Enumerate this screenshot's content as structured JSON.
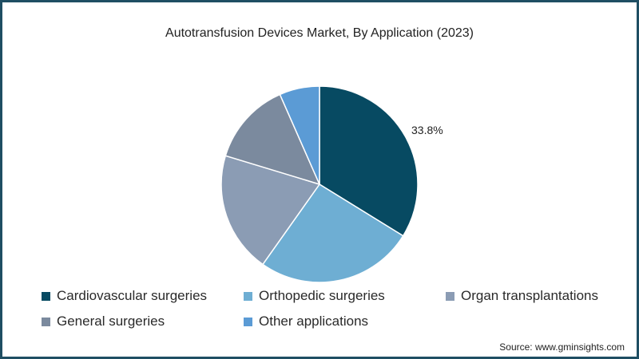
{
  "chart_data": {
    "type": "pie",
    "title": "Autotransfusion Devices Market, By Application (2023)",
    "categories": [
      "Cardiovascular surgeries",
      "Orthopedic surgeries",
      "Organ transplantations",
      "General surgeries",
      "Other applications"
    ],
    "values": [
      33.8,
      26.0,
      19.9,
      13.7,
      6.6
    ],
    "colors": [
      "#074a62",
      "#6eaed3",
      "#8b9cb4",
      "#7b8a9e",
      "#5b9bd5"
    ],
    "data_labels": [
      "33.8%",
      "",
      "",
      "",
      ""
    ],
    "legend_position": "bottom",
    "source": "Source: www.gminsights.com"
  },
  "title": "Autotransfusion Devices Market, By Application (2023)",
  "label_cardio": "33.8%",
  "legend": [
    {
      "label": "Cardiovascular surgeries",
      "color": "#074a62"
    },
    {
      "label": "Orthopedic surgeries",
      "color": "#6eaed3"
    },
    {
      "label": "Organ transplantations",
      "color": "#8b9cb4"
    },
    {
      "label": "General surgeries",
      "color": "#7b8a9e"
    },
    {
      "label": "Other applications",
      "color": "#5b9bd5"
    }
  ],
  "source": "Source: www.gminsights.com"
}
